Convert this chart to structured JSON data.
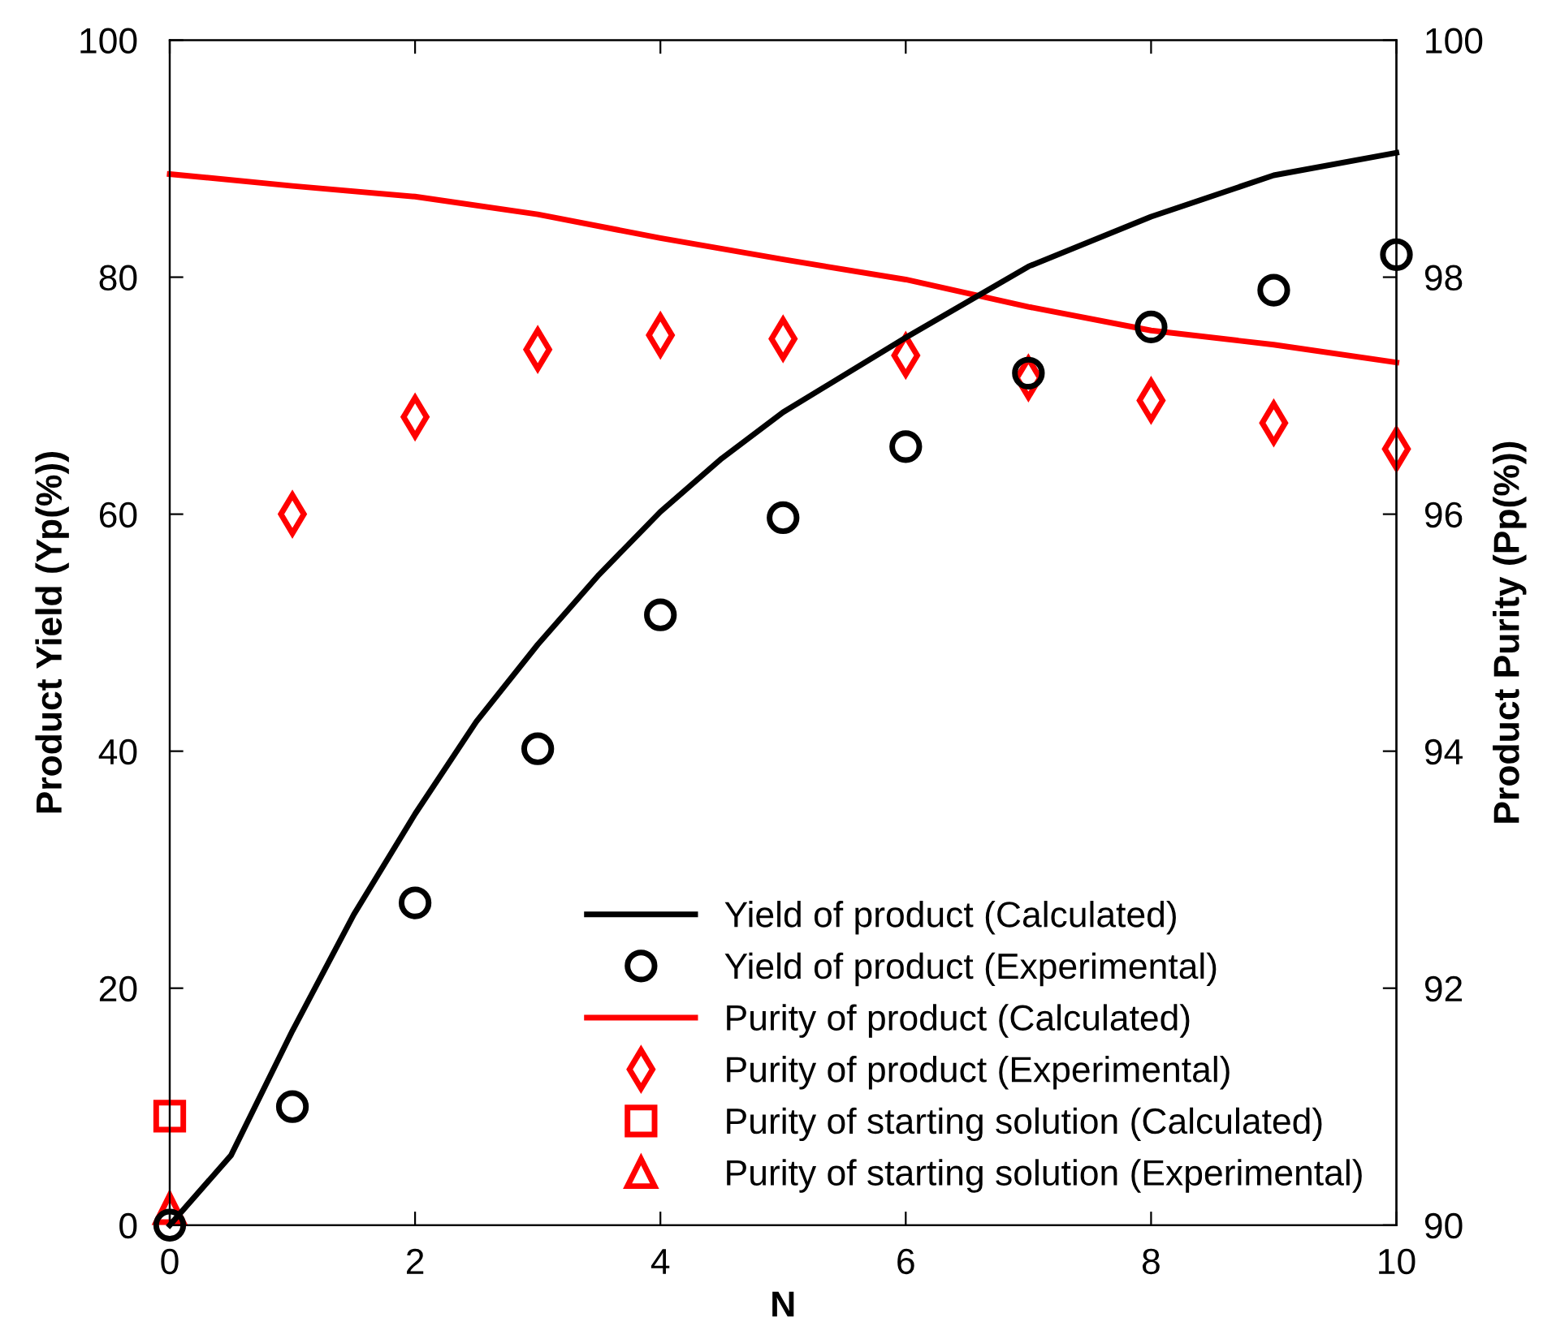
{
  "chart_data": {
    "type": "line",
    "xlabel": "N",
    "ylabel": "Product Yield (Yp(%))",
    "y2label": "Product Purity (Pp(%))",
    "xlim": [
      0,
      10
    ],
    "xticks": [
      0,
      2,
      4,
      6,
      8,
      10
    ],
    "ylim": [
      0,
      100
    ],
    "yticks": [
      0,
      20,
      40,
      60,
      80,
      100
    ],
    "y2lim": [
      90,
      100
    ],
    "y2ticks": [
      90,
      92,
      94,
      96,
      98,
      100
    ],
    "grid": false,
    "legend": "bottom right",
    "series": [
      {
        "name": "Yield of product (Calculated)",
        "color": "#000000",
        "x": [
          0,
          0.5,
          1,
          1.5,
          2,
          2.5,
          3,
          3.5,
          4,
          4.5,
          5,
          6,
          7,
          8,
          9,
          10
        ],
        "values": [
          0,
          5.9,
          16.4,
          26.2,
          34.7,
          42.5,
          49.0,
          54.9,
          60.2,
          64.7,
          68.6,
          74.9,
          80.9,
          85.1,
          88.6,
          90.5
        ],
        "marker": "none",
        "line_style": "solid"
      },
      {
        "name": "Yield of product (Experimental)",
        "type": "scatter",
        "color": "#000000",
        "x": [
          0,
          1,
          2,
          3,
          4,
          5,
          6,
          7,
          8,
          9,
          10
        ],
        "values": [
          0,
          10.0,
          27.2,
          40.2,
          51.5,
          59.7,
          65.7,
          71.9,
          75.8,
          78.9,
          81.9
        ],
        "marker": "circle"
      },
      {
        "name": "Purity of product (Calculated)",
        "axis": "y2",
        "color": "#ff0000",
        "x": [
          0,
          1,
          2,
          3,
          4,
          5,
          6,
          7,
          8,
          9,
          10
        ],
        "values": [
          98.87,
          98.77,
          98.68,
          98.53,
          98.33,
          98.15,
          97.98,
          97.75,
          97.55,
          97.43,
          97.28
        ],
        "marker": "none",
        "line_style": "solid"
      },
      {
        "name": "Purity of product (Experimental)",
        "type": "scatter",
        "axis": "y2",
        "color": "#ff0000",
        "x": [
          1,
          2,
          3,
          4,
          5,
          6,
          7,
          8,
          9,
          10
        ],
        "values": [
          96.0,
          96.82,
          97.39,
          97.51,
          97.48,
          97.34,
          97.15,
          96.96,
          96.77,
          96.55
        ],
        "marker": "diamond"
      },
      {
        "name": "Purity of starting solution (Calculated)",
        "type": "scatter",
        "axis": "y2",
        "color": "#ff0000",
        "x": [
          0
        ],
        "values": [
          90.92
        ],
        "marker": "square"
      },
      {
        "name": "Purity of starting solution (Experimental)",
        "type": "scatter",
        "axis": "y2",
        "color": "#ff0000",
        "x": [
          0
        ],
        "values": [
          90.14
        ],
        "marker": "triangle"
      }
    ]
  }
}
